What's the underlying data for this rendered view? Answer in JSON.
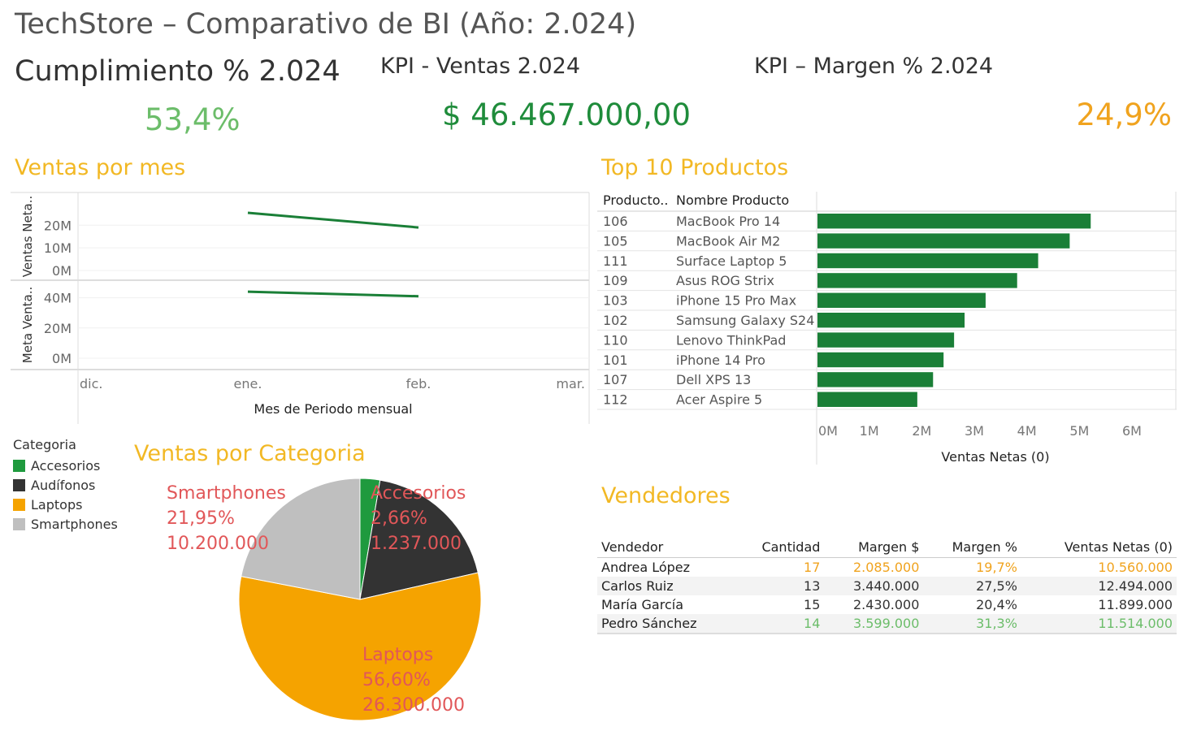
{
  "title": "TechStore – Comparativo de BI (Año: 2.024)",
  "kpis": {
    "cumplimiento_label": "Cumplimiento %  2.024",
    "cumplimiento_value": "53,4%",
    "ventas_label": "KPI - Ventas 2.024",
    "ventas_value": "$ 46.467.000,00",
    "margen_label": "KPI – Margen % 2.024",
    "margen_value": "24,9%"
  },
  "colors": {
    "title_accent": "#f2b824",
    "green": "#1a7f37",
    "light_green": "#6cbd6a",
    "orange": "#f0a31e",
    "pie_accesorios": "#1f9a3e",
    "pie_audifonos": "#333333",
    "pie_laptops": "#f5a300",
    "pie_smartphones": "#bfbfbf",
    "pie_label": "#e15759"
  },
  "sections": {
    "ventas_mes": "Ventas por mes",
    "top10": "Top 10 Productos",
    "categoria": "Ventas por Categoria",
    "vendedores": "Vendedores"
  },
  "chart_data": [
    {
      "type": "line",
      "name": "ventas_por_mes",
      "title": "Ventas por mes",
      "xlabel": "Mes de Periodo mensual",
      "x_ticks": [
        "dic.",
        "ene.",
        "feb.",
        "mar."
      ],
      "panels": [
        {
          "ylabel": "Ventas Neta..",
          "y_ticks": [
            "20M",
            "10M",
            "0M"
          ],
          "ylim": [
            0,
            28000000
          ],
          "points": [
            {
              "x": "ene.",
              "y": 25500000
            },
            {
              "x": "feb.",
              "y": 19000000
            }
          ]
        },
        {
          "ylabel": "Meta Venta..",
          "y_ticks": [
            "40M",
            "20M",
            "0M"
          ],
          "ylim": [
            0,
            50000000
          ],
          "points": [
            {
              "x": "ene.",
              "y": 44000000
            },
            {
              "x": "feb.",
              "y": 41000000
            }
          ]
        }
      ]
    },
    {
      "type": "bar",
      "name": "top_10_productos",
      "title": "Top 10 Productos",
      "col_headers": [
        "Producto..",
        "Nombre Producto"
      ],
      "xlabel": "Ventas Netas (0)",
      "x_ticks": [
        "0M",
        "1M",
        "2M",
        "3M",
        "4M",
        "5M",
        "6M"
      ],
      "xlim": [
        0,
        6000000
      ],
      "rows": [
        {
          "id": "106",
          "name": "MacBook Pro 14",
          "value": 5200000
        },
        {
          "id": "105",
          "name": "MacBook Air M2",
          "value": 4800000
        },
        {
          "id": "111",
          "name": "Surface Laptop 5",
          "value": 4200000
        },
        {
          "id": "109",
          "name": "Asus ROG Strix",
          "value": 3800000
        },
        {
          "id": "103",
          "name": "iPhone 15 Pro Max",
          "value": 3200000
        },
        {
          "id": "102",
          "name": "Samsung Galaxy S24",
          "value": 2800000
        },
        {
          "id": "110",
          "name": "Lenovo ThinkPad",
          "value": 2600000
        },
        {
          "id": "101",
          "name": "iPhone 14 Pro",
          "value": 2400000
        },
        {
          "id": "107",
          "name": "Dell XPS 13",
          "value": 2200000
        },
        {
          "id": "112",
          "name": "Acer Aspire 5",
          "value": 1900000
        }
      ]
    },
    {
      "type": "pie",
      "name": "ventas_por_categoria",
      "title": "Ventas por Categoria",
      "legend_title": "Categoria",
      "legend_position": "left",
      "slices": [
        {
          "name": "Accesorios",
          "percent": 2.66,
          "percent_label": "2,66%",
          "value": 1237000,
          "value_label": "1.237.000",
          "color": "#1f9a3e"
        },
        {
          "name": "Audífonos",
          "percent": 18.79,
          "value": 8730000,
          "color": "#333333"
        },
        {
          "name": "Laptops",
          "percent": 56.6,
          "percent_label": "56,60%",
          "value": 26300000,
          "value_label": "26.300.000",
          "color": "#f5a300"
        },
        {
          "name": "Smartphones",
          "percent": 21.95,
          "percent_label": "21,95%",
          "value": 10200000,
          "value_label": "10.200.000",
          "color": "#bfbfbf"
        }
      ]
    }
  ],
  "vendedores": {
    "headers": [
      "Vendedor",
      "Cantidad",
      "Margen $",
      "Margen %",
      "Ventas Netas (0)"
    ],
    "rows": [
      {
        "vendedor": "Andrea López",
        "cantidad": "17",
        "margen": "2.085.000",
        "margen_pct": "19,7%",
        "ventas": "10.560.000",
        "color": "orange"
      },
      {
        "vendedor": "Carlos Ruiz",
        "cantidad": "13",
        "margen": "3.440.000",
        "margen_pct": "27,5%",
        "ventas": "12.494.000",
        "color": "dark"
      },
      {
        "vendedor": "María García",
        "cantidad": "15",
        "margen": "2.430.000",
        "margen_pct": "20,4%",
        "ventas": "11.899.000",
        "color": "dark"
      },
      {
        "vendedor": "Pedro Sánchez",
        "cantidad": "14",
        "margen": "3.599.000",
        "margen_pct": "31,3%",
        "ventas": "11.514.000",
        "color": "green"
      }
    ]
  }
}
